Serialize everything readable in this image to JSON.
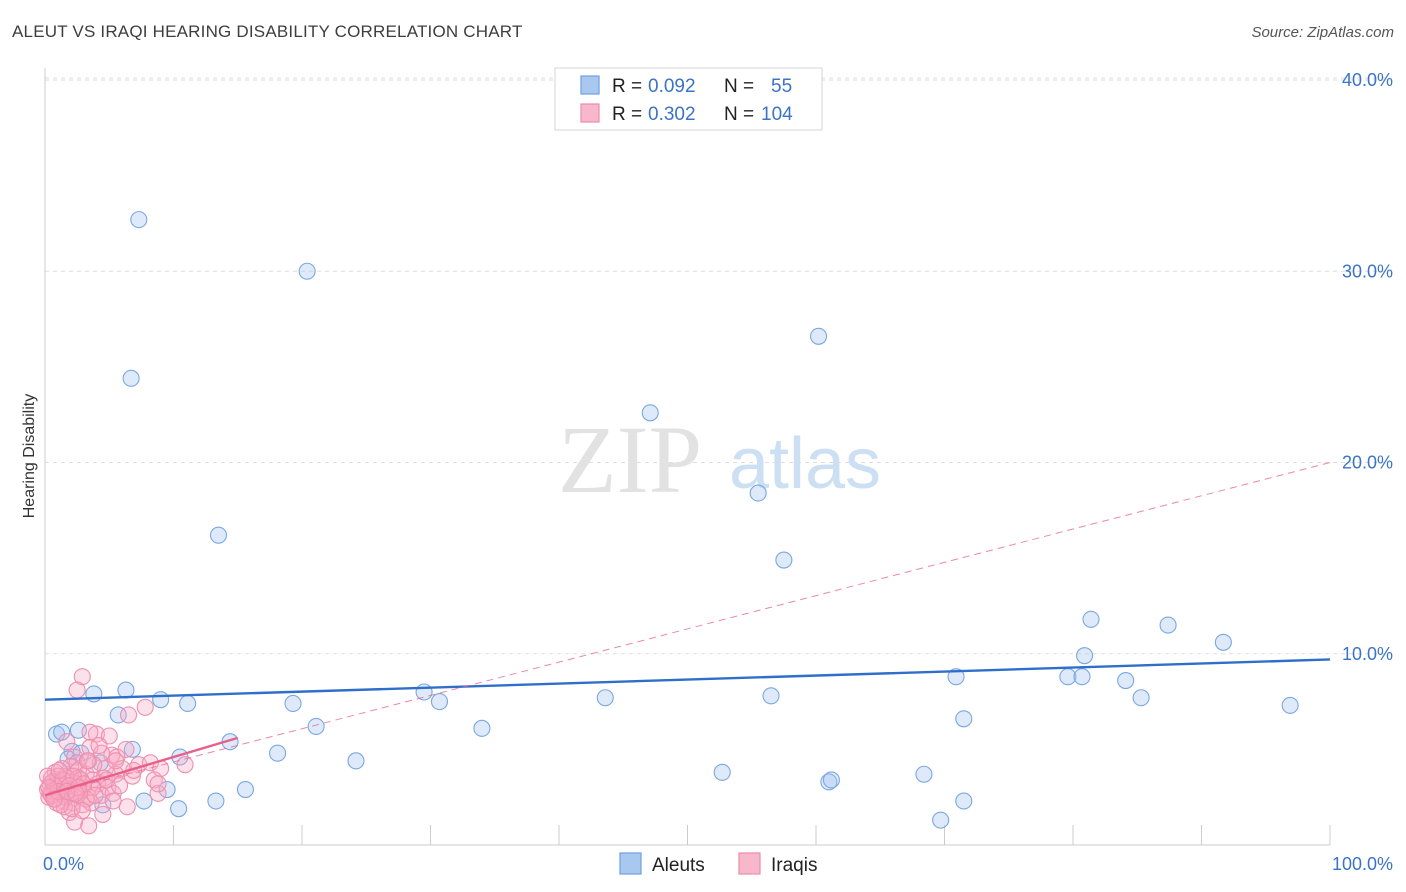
{
  "header": {
    "title": "ALEUT VS IRAQI HEARING DISABILITY CORRELATION CHART",
    "source": "Source: ZipAtlas.com"
  },
  "watermark": {
    "zip": "ZIP",
    "atlas": "atlas"
  },
  "legend": {
    "r_label": "R =",
    "n_label": "N =",
    "rows": [
      {
        "r": "0.092",
        "n": "55",
        "fill": "#a9c8f0",
        "stroke": "#6f9fe0"
      },
      {
        "r": "0.302",
        "n": "104",
        "fill": "#f8b8cc",
        "stroke": "#ef8bab"
      }
    ]
  },
  "colors": {
    "aleut_fill": "rgba(160,195,240,0.35)",
    "aleut_stroke": "#7aa7e2",
    "aleut_line": "#2f6fc9",
    "iraqi_fill": "rgba(248,170,195,0.35)",
    "iraqi_stroke": "#ee8fb0",
    "iraqi_line": "#e8608a",
    "grid": "#dddddd",
    "tick_text": "#3b73c6"
  },
  "chart_data": {
    "type": "scatter",
    "title": "ALEUT VS IRAQI HEARING DISABILITY CORRELATION CHART",
    "xlabel": "",
    "ylabel": "Hearing Disability",
    "xlim": [
      0,
      100
    ],
    "ylim": [
      0,
      40
    ],
    "x_tick_labels": [
      "0.0%",
      "100.0%"
    ],
    "y_ticks": [
      10,
      20,
      30,
      40
    ],
    "y_tick_labels": [
      "10.0%",
      "20.0%",
      "30.0%",
      "40.0%"
    ],
    "grid": true,
    "series": [
      {
        "name": "Aleuts",
        "R": 0.092,
        "N": 55,
        "points": [
          [
            7.3,
            32.7
          ],
          [
            20.4,
            30.0
          ],
          [
            6.7,
            24.4
          ],
          [
            60.2,
            26.6
          ],
          [
            47.1,
            22.6
          ],
          [
            13.5,
            16.2
          ],
          [
            55.5,
            18.4
          ],
          [
            57.5,
            14.9
          ],
          [
            81.4,
            11.8
          ],
          [
            87.4,
            11.5
          ],
          [
            91.7,
            10.6
          ],
          [
            80.9,
            9.9
          ],
          [
            70.9,
            8.8
          ],
          [
            79.6,
            8.8
          ],
          [
            80.7,
            8.8
          ],
          [
            84.1,
            8.6
          ],
          [
            85.3,
            7.7
          ],
          [
            96.9,
            7.3
          ],
          [
            0.9,
            5.8
          ],
          [
            1.3,
            5.9
          ],
          [
            2.6,
            6.0
          ],
          [
            2.1,
            4.9
          ],
          [
            3.8,
            7.9
          ],
          [
            6.3,
            8.1
          ],
          [
            5.7,
            6.8
          ],
          [
            9.0,
            7.6
          ],
          [
            11.1,
            7.4
          ],
          [
            19.3,
            7.4
          ],
          [
            29.5,
            8.0
          ],
          [
            30.7,
            7.5
          ],
          [
            43.6,
            7.7
          ],
          [
            56.5,
            7.8
          ],
          [
            71.5,
            6.6
          ],
          [
            21.1,
            6.2
          ],
          [
            34.0,
            6.1
          ],
          [
            14.4,
            5.4
          ],
          [
            18.1,
            4.8
          ],
          [
            10.5,
            4.6
          ],
          [
            24.2,
            4.4
          ],
          [
            52.7,
            3.8
          ],
          [
            61.0,
            3.3
          ],
          [
            61.2,
            3.4
          ],
          [
            68.4,
            3.7
          ],
          [
            15.6,
            2.9
          ],
          [
            9.5,
            2.9
          ],
          [
            7.7,
            2.3
          ],
          [
            4.5,
            2.1
          ],
          [
            10.4,
            1.9
          ],
          [
            13.3,
            2.3
          ],
          [
            71.5,
            2.3
          ],
          [
            69.7,
            1.3
          ],
          [
            1.8,
            4.5
          ],
          [
            2.8,
            4.8
          ],
          [
            4.3,
            4.3
          ],
          [
            6.8,
            5.0
          ]
        ]
      },
      {
        "name": "Iraqis",
        "R": 0.302,
        "N": 104,
        "points": [
          [
            2.9,
            8.8
          ],
          [
            2.5,
            8.1
          ],
          [
            7.8,
            7.2
          ],
          [
            6.5,
            6.8
          ],
          [
            4.0,
            5.8
          ],
          [
            5.0,
            5.7
          ],
          [
            3.5,
            5.9
          ],
          [
            1.7,
            5.4
          ],
          [
            3.5,
            5.1
          ],
          [
            6.3,
            5.0
          ],
          [
            5.2,
            4.7
          ],
          [
            2.3,
            4.6
          ],
          [
            4.4,
            4.8
          ],
          [
            5.6,
            4.6
          ],
          [
            2.5,
            4.3
          ],
          [
            3.4,
            4.4
          ],
          [
            7.3,
            4.2
          ],
          [
            8.2,
            4.3
          ],
          [
            10.9,
            4.2
          ],
          [
            6.0,
            4.0
          ],
          [
            4.7,
            4.0
          ],
          [
            2.0,
            4.1
          ],
          [
            1.3,
            4.0
          ],
          [
            0.8,
            3.8
          ],
          [
            1.6,
            3.6
          ],
          [
            2.6,
            3.9
          ],
          [
            3.2,
            3.7
          ],
          [
            5.5,
            3.7
          ],
          [
            6.8,
            3.6
          ],
          [
            8.5,
            3.4
          ],
          [
            4.6,
            3.5
          ],
          [
            3.7,
            3.4
          ],
          [
            2.1,
            3.3
          ],
          [
            1.2,
            3.3
          ],
          [
            0.4,
            3.2
          ],
          [
            0.9,
            3.0
          ],
          [
            1.5,
            3.1
          ],
          [
            2.4,
            3.2
          ],
          [
            3.0,
            3.0
          ],
          [
            4.1,
            3.2
          ],
          [
            4.9,
            3.0
          ],
          [
            0.2,
            2.9
          ],
          [
            0.6,
            2.8
          ],
          [
            1.1,
            2.7
          ],
          [
            1.8,
            2.6
          ],
          [
            2.7,
            2.8
          ],
          [
            3.4,
            2.5
          ],
          [
            4.4,
            2.6
          ],
          [
            5.3,
            2.7
          ],
          [
            8.8,
            2.7
          ],
          [
            0.3,
            2.5
          ],
          [
            0.8,
            2.4
          ],
          [
            1.4,
            2.3
          ],
          [
            2.2,
            2.2
          ],
          [
            2.9,
            2.1
          ],
          [
            3.6,
            2.2
          ],
          [
            6.4,
            2.0
          ],
          [
            1.9,
            1.7
          ],
          [
            2.3,
            1.2
          ],
          [
            3.4,
            1.0
          ],
          [
            0.5,
            3.5
          ],
          [
            1.0,
            3.6
          ],
          [
            1.7,
            3.5
          ],
          [
            2.6,
            3.5
          ],
          [
            0.7,
            3.1
          ],
          [
            1.3,
            2.9
          ],
          [
            2.0,
            2.9
          ],
          [
            2.8,
            3.4
          ],
          [
            3.7,
            3.0
          ],
          [
            0.4,
            2.7
          ],
          [
            1.6,
            2.5
          ],
          [
            2.5,
            2.6
          ],
          [
            3.2,
            2.4
          ],
          [
            0.9,
            2.2
          ],
          [
            1.5,
            2.0
          ],
          [
            2.1,
            1.9
          ],
          [
            0.6,
            3.3
          ],
          [
            1.4,
            3.4
          ],
          [
            2.2,
            3.6
          ],
          [
            3.0,
            3.2
          ],
          [
            4.8,
            3.4
          ],
          [
            5.8,
            3.1
          ],
          [
            0.2,
            3.6
          ],
          [
            1.1,
            3.9
          ],
          [
            3.8,
            4.2
          ],
          [
            4.2,
            5.2
          ],
          [
            5.5,
            4.4
          ],
          [
            6.9,
            3.9
          ],
          [
            8.8,
            3.2
          ],
          [
            9.0,
            4.0
          ],
          [
            0.5,
            2.6
          ],
          [
            1.2,
            2.1
          ],
          [
            2.9,
            1.8
          ],
          [
            4.5,
            1.6
          ],
          [
            5.3,
            2.3
          ],
          [
            3.3,
            4.4
          ],
          [
            1.9,
            3.1
          ],
          [
            2.6,
            3.0
          ],
          [
            1.0,
            2.8
          ],
          [
            0.3,
            3.0
          ],
          [
            1.7,
            2.8
          ],
          [
            2.4,
            2.7
          ],
          [
            3.9,
            2.6
          ],
          [
            0.7,
            2.4
          ]
        ]
      }
    ],
    "trendlines": [
      {
        "series": "Aleuts",
        "x": [
          0,
          100
        ],
        "y": [
          7.6,
          9.7
        ],
        "style": "solid"
      },
      {
        "series": "Iraqis",
        "x": [
          0,
          15
        ],
        "y": [
          2.6,
          5.6
        ],
        "style": "solid"
      },
      {
        "series": "Iraqis",
        "x": [
          0,
          100
        ],
        "y": [
          2.6,
          20.0
        ],
        "style": "dashed"
      }
    ],
    "legend_position": "top-center"
  }
}
